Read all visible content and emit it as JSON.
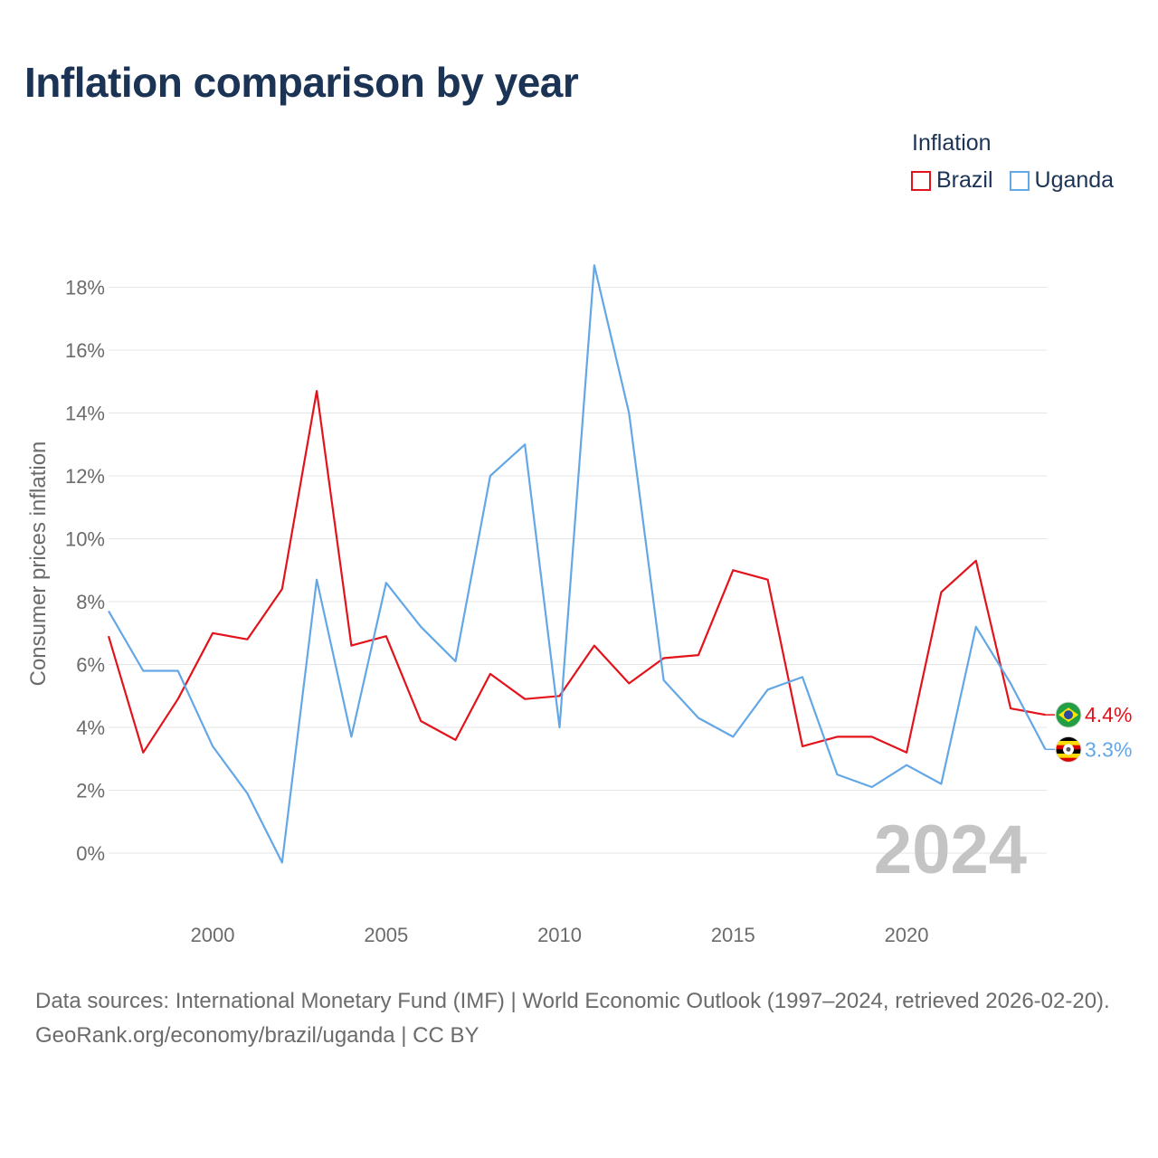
{
  "title": "Inflation comparison by year",
  "legend": {
    "title": "Inflation",
    "items": [
      {
        "label": "Brazil",
        "color": "#e3131b"
      },
      {
        "label": "Uganda",
        "color": "#63a7e6"
      }
    ]
  },
  "chart_data": {
    "type": "line",
    "title": "Inflation comparison by year",
    "xlabel": "",
    "ylabel": "Consumer prices inflation",
    "xlim": [
      1997,
      2024
    ],
    "ylim": [
      -1,
      20
    ],
    "yticks": [
      0,
      2,
      4,
      6,
      8,
      10,
      12,
      14,
      16,
      18
    ],
    "ytick_labels": [
      "0%",
      "2%",
      "4%",
      "6%",
      "8%",
      "10%",
      "12%",
      "14%",
      "16%",
      "18%"
    ],
    "xticks": [
      2000,
      2005,
      2010,
      2015,
      2020
    ],
    "xtick_labels": [
      "2000",
      "2005",
      "2010",
      "2015",
      "2020"
    ],
    "grid": true,
    "legend_position": "top-right",
    "year_watermark": "2024",
    "x": [
      1997,
      1998,
      1999,
      2000,
      2001,
      2002,
      2003,
      2004,
      2005,
      2006,
      2007,
      2008,
      2009,
      2010,
      2011,
      2012,
      2013,
      2014,
      2015,
      2016,
      2017,
      2018,
      2019,
      2020,
      2021,
      2022,
      2023,
      2024
    ],
    "series": [
      {
        "name": "Brazil",
        "color": "#e3131b",
        "values": [
          6.9,
          3.2,
          4.9,
          7.0,
          6.8,
          8.4,
          14.7,
          6.6,
          6.9,
          4.2,
          3.6,
          5.7,
          4.9,
          5.0,
          6.6,
          5.4,
          6.2,
          6.3,
          9.0,
          8.7,
          3.4,
          3.7,
          3.7,
          3.2,
          8.3,
          9.3,
          4.6,
          4.4
        ],
        "end_label": "4.4%",
        "flag": "brazil-flag"
      },
      {
        "name": "Uganda",
        "color": "#63a7e6",
        "values": [
          7.7,
          5.8,
          5.8,
          3.4,
          1.9,
          -0.3,
          8.7,
          3.7,
          8.6,
          7.2,
          6.1,
          12.0,
          13.0,
          4.0,
          18.7,
          14.0,
          5.5,
          4.3,
          3.7,
          5.2,
          5.6,
          2.5,
          2.1,
          2.8,
          2.2,
          7.2,
          5.4,
          3.3
        ],
        "end_label": "3.3%",
        "flag": "uganda-flag"
      }
    ]
  },
  "footer": {
    "sources": "Data sources: International Monetary Fund (IMF) | World Economic Outlook (1997–2024, retrieved 2026-02-20).",
    "credit": "GeoRank.org/economy/brazil/uganda | CC BY"
  }
}
